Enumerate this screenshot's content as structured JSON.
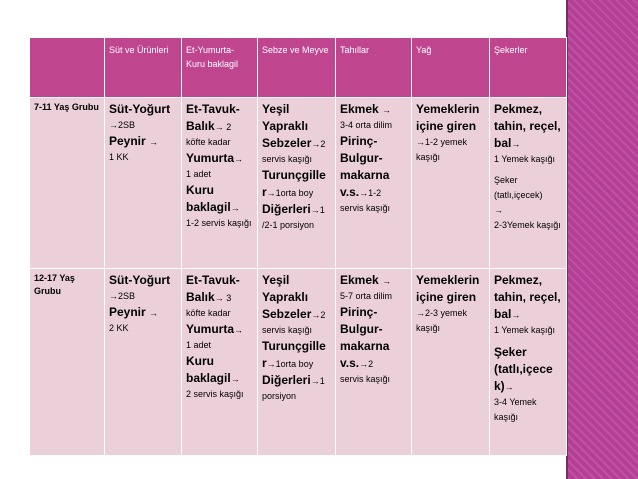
{
  "headers": [
    "",
    "Süt ve Ürünleri",
    "Et-Yumurta-Kuru baklagil",
    "Sebze ve Meyve",
    "Tahıllar",
    "Yağ",
    "Şekerler"
  ],
  "rows": [
    {
      "group": "7-11 Yaş Grubu",
      "sut": {
        "b1": "Süt-Yoğurt",
        "s1": "2SB",
        "b2": "Peynir ",
        "s2": "1 KK"
      },
      "et": {
        "b1": "Et-Tavuk-Balık",
        "s1": " 2",
        "s1b": "köfte kadar",
        "b2": "Yumurta",
        "s2": "1 adet",
        "b3": "Kuru baklagil",
        "s3": "1-2 servis kaşığı"
      },
      "sebze": {
        "b1": "Yeşil Yapraklı Sebzeler",
        "s1": "2",
        "s1b": "servis kaşığı",
        "b2": "Turunçgille r",
        "s2": "1orta boy",
        "b3": "Diğerleri",
        "s3": "1",
        "s3b": "/2-1 porsiyon"
      },
      "tahil": {
        "b1": "Ekmek ",
        "s1": "3-4 orta dilim",
        "b2": "Pirinç-Bulgur-makarna v.s.",
        "s2": "1-2",
        "s2b": "servis kaşığı"
      },
      "yag": {
        "b1": "Yemeklerin içine giren",
        "s1": "1-2 yemek kaşığı"
      },
      "seker": {
        "b1": "Pekmez, tahin, reçel, bal",
        "s1": "1 Yemek kaşığı",
        "s2": "Şeker (tatlı,içecek)",
        "s3": "2-3Yemek kaşığı"
      }
    },
    {
      "group": "12-17 Yaş Grubu",
      "sut": {
        "b1": "Süt-Yoğurt",
        "s1": "2SB",
        "b2": "Peynir ",
        "s2": "2 KK"
      },
      "et": {
        "b1": "Et-Tavuk-Balık",
        "s1": " 3",
        "s1b": "köfte kadar",
        "b2": "Yumurta",
        "s2": "1 adet",
        "b3": "Kuru baklagil",
        "s3": "2 servis kaşığı"
      },
      "sebze": {
        "b1": "Yeşil Yapraklı Sebzeler",
        "s1": "2",
        "s1b": "servis kaşığı",
        "b2": "Turunçgille r",
        "s2": "1orta boy",
        "b3": "Diğerleri",
        "s3": "1",
        "s3b": "porsiyon"
      },
      "tahil": {
        "b1": "Ekmek ",
        "s1": "5-7 orta dilim",
        "b2": "Pirinç-Bulgur-makarna v.s.",
        "s2": "2",
        "s2b": "servis kaşığı"
      },
      "yag": {
        "b1": "Yemeklerin içine giren",
        "s1": "2-3 yemek kaşığı"
      },
      "seker": {
        "b1": "Pekmez, tahin, reçel, bal",
        "s1": "1 Yemek kaşığı",
        "s2": "Şeker (tatlı,içece k)",
        "s3": "3-4 Yemek kaşığı"
      }
    }
  ],
  "icons": {
    "arrow": "→"
  },
  "colors": {
    "header_bg": "#c0458f",
    "cell_bg": "#ebd0da",
    "sidebar": "#b63f96"
  }
}
